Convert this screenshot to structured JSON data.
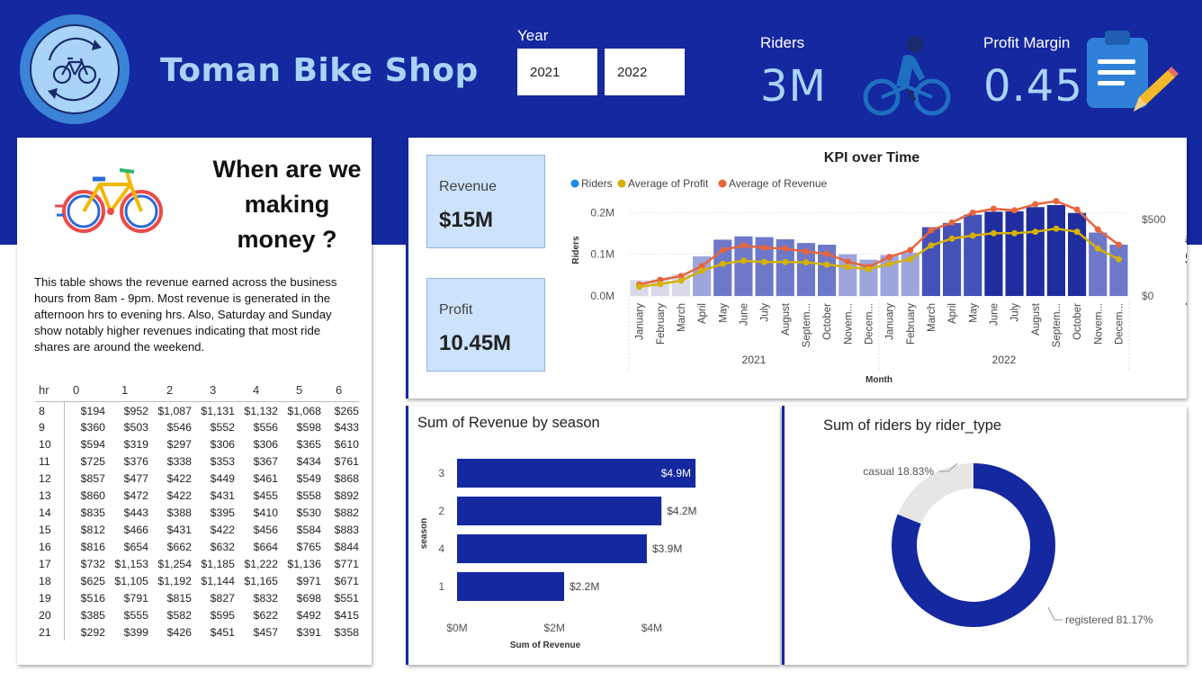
{
  "header": {
    "title": "Toman Bike Shop",
    "year_label": "Year",
    "years": [
      "2021",
      "2022"
    ],
    "riders_label": "Riders",
    "riders_value": "3M",
    "margin_label": "Profit Margin",
    "margin_value": "0.45"
  },
  "side_panel": {
    "heading": "When are we making money ?",
    "description": "This table shows the revenue earned across the business hours from 8am - 9pm. Most revenue is generated in the afternoon hrs to evening hrs.  Also, Saturday and Sunday show notably higher revenues indicating that most ride shares are around the weekend.",
    "table": {
      "columns": [
        "hr",
        "0",
        "1",
        "2",
        "3",
        "4",
        "5",
        "6"
      ],
      "rows": [
        [
          "8",
          "$194",
          "$952",
          "$1,087",
          "$1,131",
          "$1,132",
          "$1,068",
          "$265"
        ],
        [
          "9",
          "$360",
          "$503",
          "$546",
          "$552",
          "$556",
          "$598",
          "$433"
        ],
        [
          "10",
          "$594",
          "$319",
          "$297",
          "$306",
          "$306",
          "$365",
          "$610"
        ],
        [
          "11",
          "$725",
          "$376",
          "$338",
          "$353",
          "$367",
          "$434",
          "$761"
        ],
        [
          "12",
          "$857",
          "$477",
          "$422",
          "$449",
          "$461",
          "$549",
          "$868"
        ],
        [
          "13",
          "$860",
          "$472",
          "$422",
          "$431",
          "$455",
          "$558",
          "$892"
        ],
        [
          "14",
          "$835",
          "$443",
          "$388",
          "$395",
          "$410",
          "$530",
          "$882"
        ],
        [
          "15",
          "$812",
          "$466",
          "$431",
          "$422",
          "$456",
          "$584",
          "$883"
        ],
        [
          "16",
          "$816",
          "$654",
          "$662",
          "$632",
          "$664",
          "$765",
          "$844"
        ],
        [
          "17",
          "$732",
          "$1,153",
          "$1,254",
          "$1,185",
          "$1,222",
          "$1,136",
          "$771"
        ],
        [
          "18",
          "$625",
          "$1,105",
          "$1,192",
          "$1,144",
          "$1,165",
          "$971",
          "$671"
        ],
        [
          "19",
          "$516",
          "$791",
          "$815",
          "$827",
          "$832",
          "$698",
          "$551"
        ],
        [
          "20",
          "$385",
          "$555",
          "$582",
          "$595",
          "$622",
          "$492",
          "$415"
        ],
        [
          "21",
          "$292",
          "$399",
          "$426",
          "$451",
          "$457",
          "$391",
          "$358"
        ]
      ]
    }
  },
  "stats": {
    "revenue_label": "Revenue",
    "revenue_value": "$15M",
    "profit_label": "Profit",
    "profit_value": "10.45M"
  },
  "colors": {
    "header_bg": "#1428a0",
    "accent_light": "#a9d4f7",
    "bar_dark": "#1f2d9e",
    "riders_legend": "#1e88e5",
    "profit_line": "#d4b106",
    "revenue_line": "#e8643c",
    "donut_registered": "#1428a0",
    "donut_casual": "#e6e6e6"
  },
  "chart_data": [
    {
      "type": "bar",
      "title": "KPI over Time",
      "xlabel": "Month",
      "ylabel": "Riders",
      "y2label": "Average of Profit a...",
      "legend": [
        "Riders",
        "Average of Profit",
        "Average of Revenue"
      ],
      "legend_position": "top-left",
      "months": [
        "January",
        "February",
        "March",
        "April",
        "May",
        "June",
        "July",
        "August",
        "Septem...",
        "October",
        "Novem...",
        "Decem...",
        "January",
        "February",
        "March",
        "April",
        "May",
        "June",
        "July",
        "August",
        "Septem...",
        "October",
        "Novem...",
        "Decem..."
      ],
      "groups": [
        "2021",
        "2022"
      ],
      "y_ticks": [
        "0.0M",
        "0.1M",
        "0.2M"
      ],
      "y2_ticks": [
        "$0",
        "$500"
      ],
      "ylim": [
        0,
        0.22
      ],
      "y2lim": [
        0,
        600
      ],
      "series": [
        {
          "name": "Riders",
          "values": [
            0.038,
            0.04,
            0.052,
            0.095,
            0.135,
            0.143,
            0.141,
            0.136,
            0.127,
            0.123,
            0.1,
            0.087,
            0.098,
            0.104,
            0.165,
            0.175,
            0.195,
            0.202,
            0.203,
            0.213,
            0.218,
            0.199,
            0.152,
            0.123
          ]
        },
        {
          "name": "Average of Profit",
          "values": [
            60,
            78,
            100,
            165,
            210,
            230,
            222,
            222,
            220,
            205,
            190,
            175,
            210,
            240,
            330,
            375,
            395,
            410,
            410,
            420,
            440,
            420,
            310,
            240
          ]
        },
        {
          "name": "Average of Revenue",
          "values": [
            75,
            105,
            130,
            195,
            300,
            330,
            315,
            310,
            290,
            275,
            225,
            190,
            255,
            300,
            430,
            480,
            545,
            570,
            560,
            600,
            620,
            565,
            435,
            335
          ]
        }
      ]
    },
    {
      "type": "bar",
      "title": "Sum of Revenue by season",
      "xlabel": "Sum of Revenue",
      "ylabel": "season",
      "categories": [
        "3",
        "2",
        "4",
        "1"
      ],
      "values": [
        4.9,
        4.2,
        3.9,
        2.2
      ],
      "value_labels": [
        "$4.9M",
        "$4.2M",
        "$3.9M",
        "$2.2M"
      ],
      "x_ticks": [
        "$0M",
        "$2M",
        "$4M"
      ],
      "xlim": [
        0,
        5.25
      ]
    },
    {
      "type": "pie",
      "title": "Sum of riders by rider_type",
      "categories": [
        "registered",
        "casual"
      ],
      "values": [
        81.17,
        18.83
      ],
      "labels": [
        "registered 81.17%",
        "casual 18.83%"
      ]
    }
  ]
}
